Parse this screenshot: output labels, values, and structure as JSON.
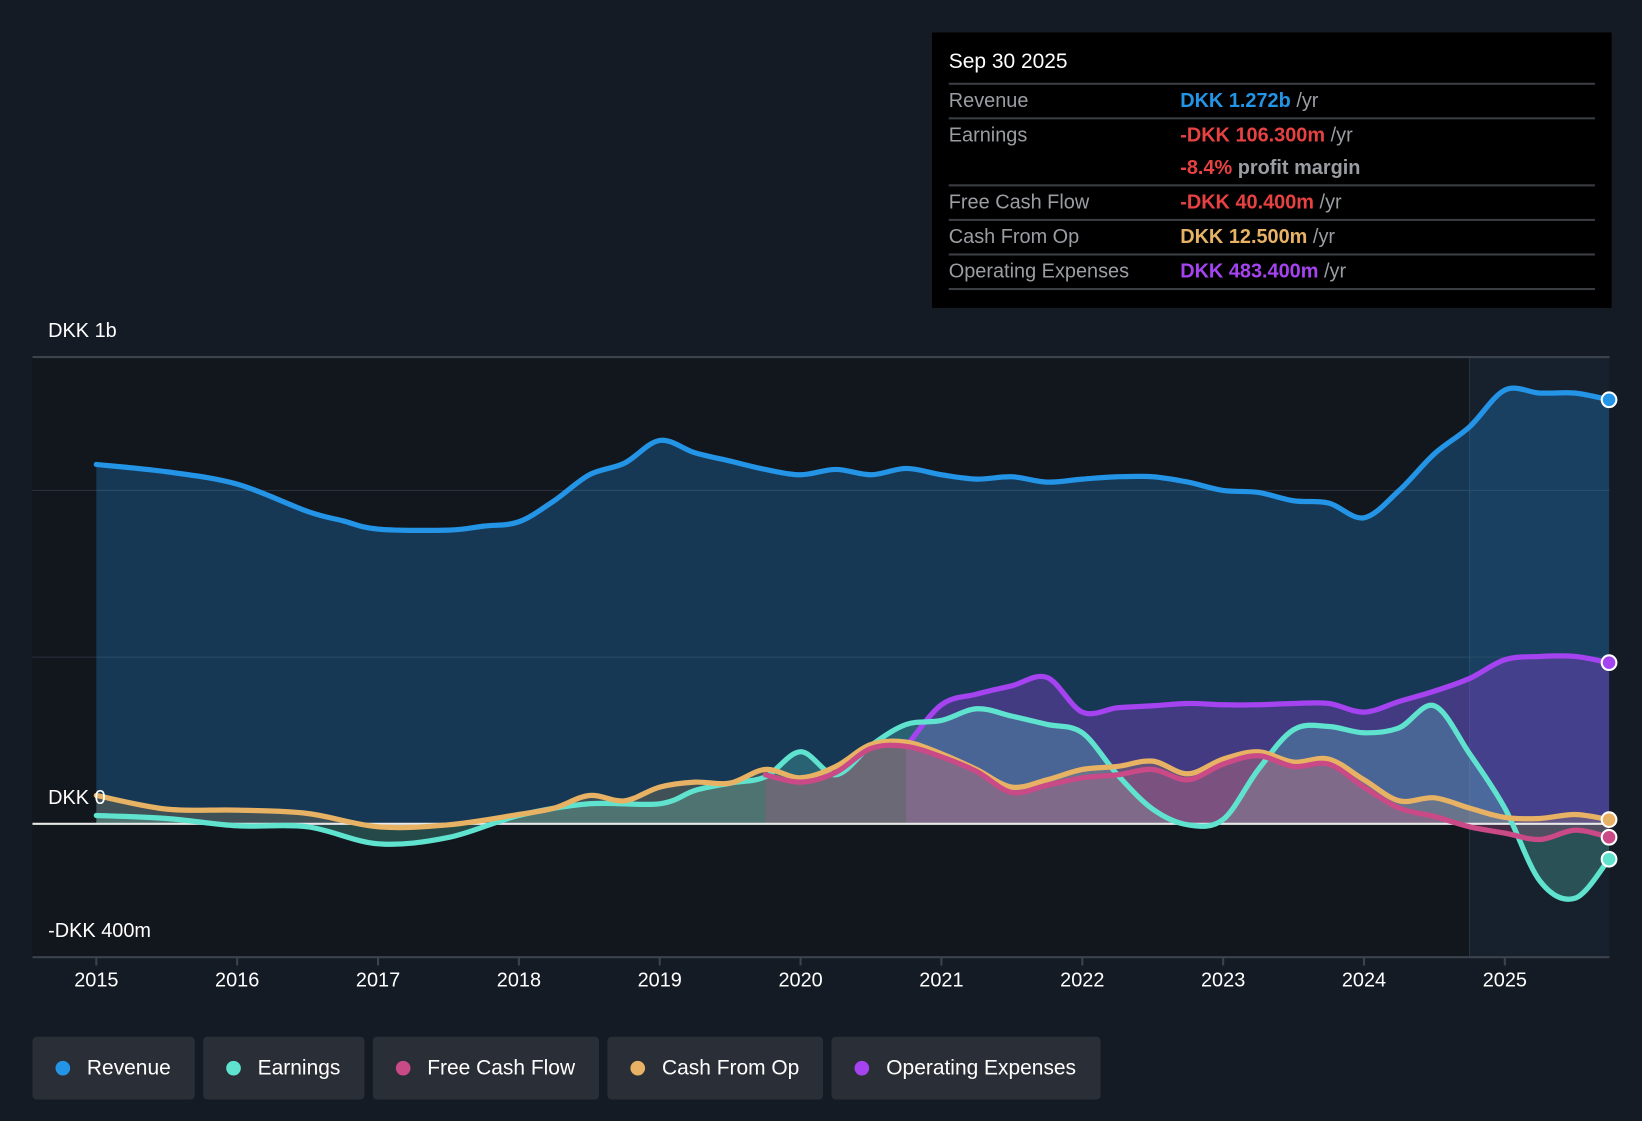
{
  "tooltip": {
    "date": "Sep 30 2025",
    "rows": [
      {
        "label": "Revenue",
        "value": "DKK 1.272b",
        "unit": "/yr",
        "color": "#2394e6"
      },
      {
        "label": "Earnings",
        "value": "-DKK 106.300m",
        "unit": "/yr",
        "color": "#e84142",
        "extra_value": "-8.4%",
        "extra_text": "profit margin"
      },
      {
        "label": "Free Cash Flow",
        "value": "-DKK 40.400m",
        "unit": "/yr",
        "color": "#e84142"
      },
      {
        "label": "Cash From Op",
        "value": "DKK 12.500m",
        "unit": "/yr",
        "color": "#e8b264"
      },
      {
        "label": "Operating Expenses",
        "value": "DKK 483.400m",
        "unit": "/yr",
        "color": "#a543f0"
      }
    ]
  },
  "chart_data": {
    "type": "line",
    "title": "",
    "xlabel": "",
    "ylabel": "",
    "y_labels": {
      "top": "DKK 1b",
      "zero": "DKK 0",
      "bottom": "-DKK 400m"
    },
    "ylim": [
      -400,
      1400
    ],
    "xlim": [
      2014.55,
      2025.74
    ],
    "x_ticks": [
      "2015",
      "2016",
      "2017",
      "2018",
      "2019",
      "2020",
      "2021",
      "2022",
      "2023",
      "2024",
      "2025"
    ],
    "highlight_from": 2024.75,
    "units": "DKK millions",
    "series": [
      {
        "name": "Revenue",
        "color": "#2394e6",
        "x": [
          2015,
          2015.5,
          2016,
          2016.5,
          2016.75,
          2017,
          2017.5,
          2017.75,
          2018,
          2018.25,
          2018.5,
          2018.75,
          2019,
          2019.25,
          2019.5,
          2019.75,
          2020,
          2020.25,
          2020.5,
          2020.75,
          2021,
          2021.25,
          2021.5,
          2021.75,
          2022,
          2022.25,
          2022.5,
          2022.75,
          2023,
          2023.25,
          2023.5,
          2023.75,
          2024,
          2024.25,
          2024.5,
          2024.75,
          2025,
          2025.25,
          2025.5,
          2025.74
        ],
        "values": [
          1078,
          1056,
          1019,
          937,
          909,
          884,
          881,
          893,
          906,
          969,
          1047,
          1082,
          1150,
          1113,
          1088,
          1063,
          1047,
          1063,
          1047,
          1066,
          1047,
          1034,
          1041,
          1025,
          1034,
          1041,
          1041,
          1025,
          1000,
          994,
          969,
          962,
          918,
          1000,
          1110,
          1191,
          1301,
          1292,
          1292,
          1272
        ]
      },
      {
        "name": "Earnings",
        "color": "#5fe3cf",
        "x": [
          2015,
          2015.5,
          2016,
          2016.5,
          2017,
          2017.5,
          2018,
          2018.5,
          2019,
          2019.25,
          2019.5,
          2019.75,
          2020,
          2020.25,
          2020.5,
          2020.75,
          2021,
          2021.25,
          2021.5,
          2021.75,
          2022,
          2022.25,
          2022.5,
          2022.75,
          2023,
          2023.25,
          2023.5,
          2023.75,
          2024,
          2024.25,
          2024.5,
          2024.75,
          2025,
          2025.25,
          2025.5,
          2025.74
        ],
        "values": [
          25,
          16,
          -6,
          -9,
          -60,
          -41,
          25,
          60,
          60,
          100,
          122,
          141,
          216,
          147,
          235,
          298,
          310,
          345,
          323,
          298,
          273,
          147,
          44,
          -3,
          13,
          163,
          282,
          292,
          273,
          288,
          354,
          210,
          47,
          -172,
          -223,
          -106.3
        ]
      },
      {
        "name": "Free Cash Flow",
        "color": "#c94a86",
        "x": [
          2019.75,
          2020,
          2020.25,
          2020.5,
          2020.75,
          2021,
          2021.25,
          2021.5,
          2021.75,
          2022,
          2022.25,
          2022.5,
          2022.75,
          2023,
          2023.25,
          2023.5,
          2023.75,
          2024,
          2024.25,
          2024.5,
          2024.75,
          2025,
          2025.25,
          2025.5,
          2025.74
        ],
        "values": [
          147,
          125,
          154,
          226,
          232,
          201,
          157,
          94,
          116,
          138,
          147,
          163,
          132,
          179,
          204,
          172,
          179,
          110,
          47,
          22,
          -9,
          -28,
          -47,
          -19,
          -40.4
        ]
      },
      {
        "name": "Cash From Op",
        "color": "#e8b264",
        "x": [
          2015,
          2015.5,
          2016,
          2016.5,
          2017,
          2017.5,
          2018,
          2018.25,
          2018.5,
          2018.75,
          2019,
          2019.25,
          2019.5,
          2019.75,
          2020,
          2020.25,
          2020.5,
          2020.75,
          2021,
          2021.25,
          2021.5,
          2021.75,
          2022,
          2022.25,
          2022.5,
          2022.75,
          2023,
          2023.25,
          2023.5,
          2023.75,
          2024,
          2024.25,
          2024.5,
          2024.75,
          2025,
          2025.25,
          2025.5,
          2025.74
        ],
        "values": [
          85,
          44,
          41,
          31,
          -9,
          -3,
          28,
          47,
          85,
          69,
          110,
          125,
          122,
          163,
          138,
          172,
          238,
          245,
          210,
          163,
          110,
          132,
          163,
          172,
          188,
          150,
          194,
          216,
          185,
          194,
          132,
          69,
          78,
          47,
          19,
          16,
          28,
          12.5
        ]
      },
      {
        "name": "Operating Expenses",
        "color": "#a543f0",
        "x": [
          2020.75,
          2021,
          2021.25,
          2021.5,
          2021.75,
          2022,
          2022.25,
          2022.5,
          2022.75,
          2023,
          2023.25,
          2023.5,
          2023.75,
          2024,
          2024.25,
          2024.5,
          2024.75,
          2025,
          2025.25,
          2025.5,
          2025.74
        ],
        "values": [
          232,
          357,
          389,
          414,
          439,
          335,
          348,
          354,
          361,
          357,
          357,
          361,
          361,
          335,
          367,
          398,
          436,
          492,
          502,
          502,
          483.4
        ]
      }
    ]
  },
  "legend": [
    "Revenue",
    "Earnings",
    "Free Cash Flow",
    "Cash From Op",
    "Operating Expenses"
  ]
}
